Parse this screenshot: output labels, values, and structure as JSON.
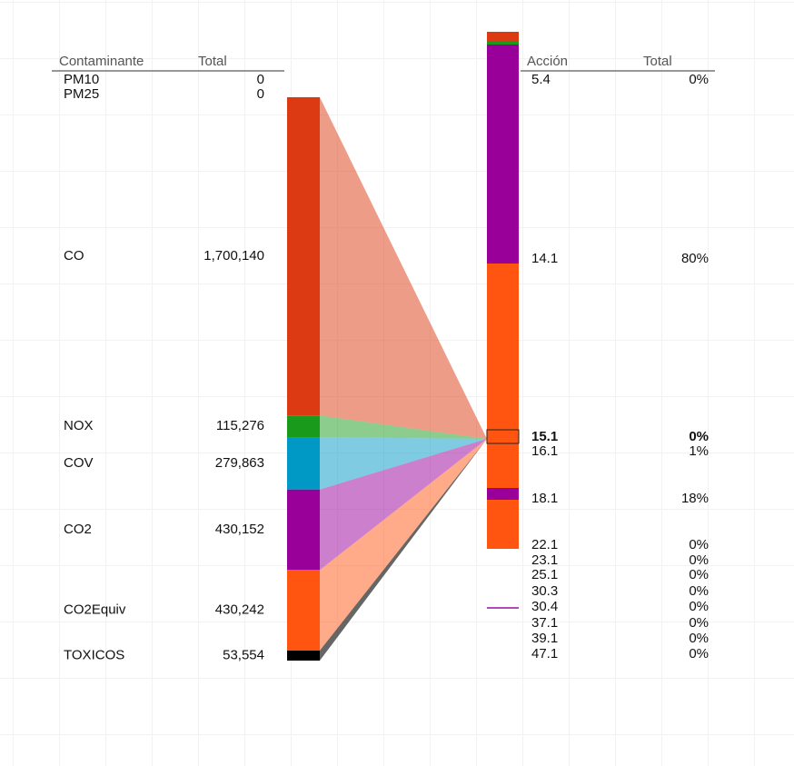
{
  "left": {
    "headers": [
      "Contaminante",
      "Total"
    ],
    "rows": [
      {
        "name": "PM10",
        "total": 0,
        "color": "#dc3a12"
      },
      {
        "name": "PM25",
        "total": 0,
        "color": "#dc3a12"
      },
      {
        "name": "CO",
        "total": {
          "value": 1700140,
          "label": "1,700,140"
        },
        "color": "#dc3a12"
      },
      {
        "name": "NOX",
        "total": {
          "value": 115276,
          "label": "115,276"
        },
        "color": "#1a9a1a"
      },
      {
        "name": "COV",
        "total": {
          "value": 279863,
          "label": "279,863"
        },
        "color": "#0099c6"
      },
      {
        "name": "CO2",
        "total": {
          "value": 430152,
          "label": "430,152"
        },
        "color": "#990099"
      },
      {
        "name": "CO2Equiv",
        "total": {
          "value": 430242,
          "label": "430,242"
        },
        "color": "#ff5511"
      },
      {
        "name": "TOXICOS",
        "total": {
          "value": 53554,
          "label": "53,554"
        },
        "color": "#000000"
      }
    ]
  },
  "right": {
    "headers": [
      "Acción",
      "Total"
    ],
    "rows": [
      {
        "name": "5.4",
        "total": "0%"
      },
      {
        "name": "14.1",
        "total": "80%"
      },
      {
        "name": "15.1",
        "total": "0%"
      },
      {
        "name": "16.1",
        "total": "1%"
      },
      {
        "name": "18.1",
        "total": "18%"
      },
      {
        "name": "22.1",
        "total": "0%"
      },
      {
        "name": "23.1",
        "total": "0%"
      },
      {
        "name": "25.1",
        "total": "0%"
      },
      {
        "name": "30.3",
        "total": "0%"
      },
      {
        "name": "30.4",
        "total": "0%"
      },
      {
        "name": "37.1",
        "total": "0%"
      },
      {
        "name": "39.1",
        "total": "0%"
      },
      {
        "name": "47.1",
        "total": "0%"
      }
    ]
  }
}
